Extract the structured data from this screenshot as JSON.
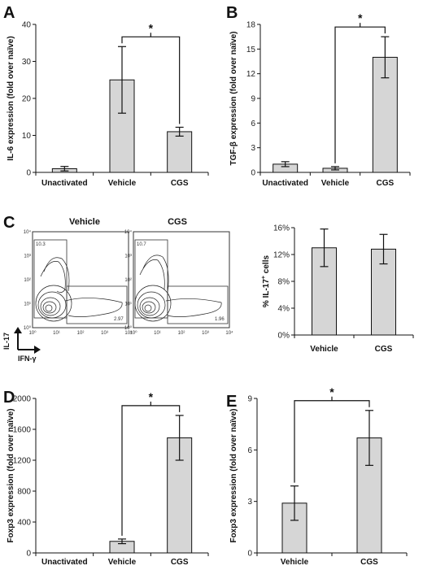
{
  "figure": {
    "panel_letters": [
      "A",
      "B",
      "C",
      "D",
      "E"
    ],
    "bar_color": "#d6d6d6",
    "significance_marker": "*"
  },
  "chart_data": [
    {
      "id": "A",
      "type": "bar",
      "categories": [
        "Unactivated",
        "Vehicle",
        "CGS"
      ],
      "values": [
        1,
        25,
        11
      ],
      "errors": [
        0.6,
        9,
        1.2
      ],
      "ylabel": "IL-6 expression (fold over naïve)",
      "ylim": [
        0,
        40
      ],
      "yticks": [
        "0",
        "10",
        "20",
        "30",
        "40"
      ],
      "significance": {
        "between": [
          1,
          2
        ],
        "label": "*"
      }
    },
    {
      "id": "B",
      "type": "bar",
      "categories": [
        "Unactivated",
        "Vehicle",
        "CGS"
      ],
      "values": [
        1.0,
        0.5,
        14
      ],
      "errors": [
        0.3,
        0.2,
        2.5
      ],
      "ylabel": "TGF-β expression (fold over naïve)",
      "ylim": [
        0,
        18
      ],
      "yticks": [
        "0",
        "3",
        "6",
        "9",
        "12",
        "15",
        "18"
      ],
      "significance": {
        "between": [
          1,
          2
        ],
        "label": "*"
      }
    },
    {
      "id": "C-bar",
      "type": "bar",
      "categories": [
        "Vehicle",
        "CGS"
      ],
      "values": [
        13,
        12.8
      ],
      "errors": [
        2.8,
        2.2
      ],
      "ylabel": "% IL-17+ cells",
      "ylabel_main": "% IL-17",
      "ylabel_sup": "+",
      "ylabel_tail": " cells",
      "ylim": [
        0,
        16
      ],
      "yticks": [
        "0%",
        "4%",
        "8%",
        "12%",
        "16%"
      ]
    },
    {
      "id": "D",
      "type": "bar",
      "categories": [
        "Unactivated",
        "Vehicle",
        "CGS"
      ],
      "values": [
        0,
        150,
        1490
      ],
      "errors": [
        0,
        30,
        290
      ],
      "ylabel": "Foxp3 expression (fold over naïve)",
      "ylim": [
        0,
        2000
      ],
      "yticks": [
        "0",
        "400",
        "800",
        "1200",
        "1600",
        "2000"
      ],
      "significance": {
        "between": [
          1,
          2
        ],
        "label": "*"
      }
    },
    {
      "id": "E",
      "type": "bar",
      "categories": [
        "Vehicle",
        "CGS"
      ],
      "values": [
        2.9,
        6.7
      ],
      "errors": [
        1.0,
        1.6
      ],
      "ylabel": "Foxp3 expression (fold over naïve)",
      "ylim": [
        0,
        9
      ],
      "yticks": [
        "0",
        "3",
        "6",
        "9"
      ],
      "significance": {
        "between": [
          0,
          1
        ],
        "label": "*"
      }
    }
  ],
  "flow": {
    "plots": [
      {
        "title": "Vehicle",
        "gate_upper": "10.3",
        "gate_lower": "2.97"
      },
      {
        "title": "CGS",
        "gate_upper": "10.7",
        "gate_lower": "1.96"
      }
    ],
    "y_axis_label": "IL-17",
    "x_axis_label": "IFN-γ",
    "decades": [
      "10⁰",
      "10¹",
      "10²",
      "10³",
      "10⁴"
    ]
  }
}
